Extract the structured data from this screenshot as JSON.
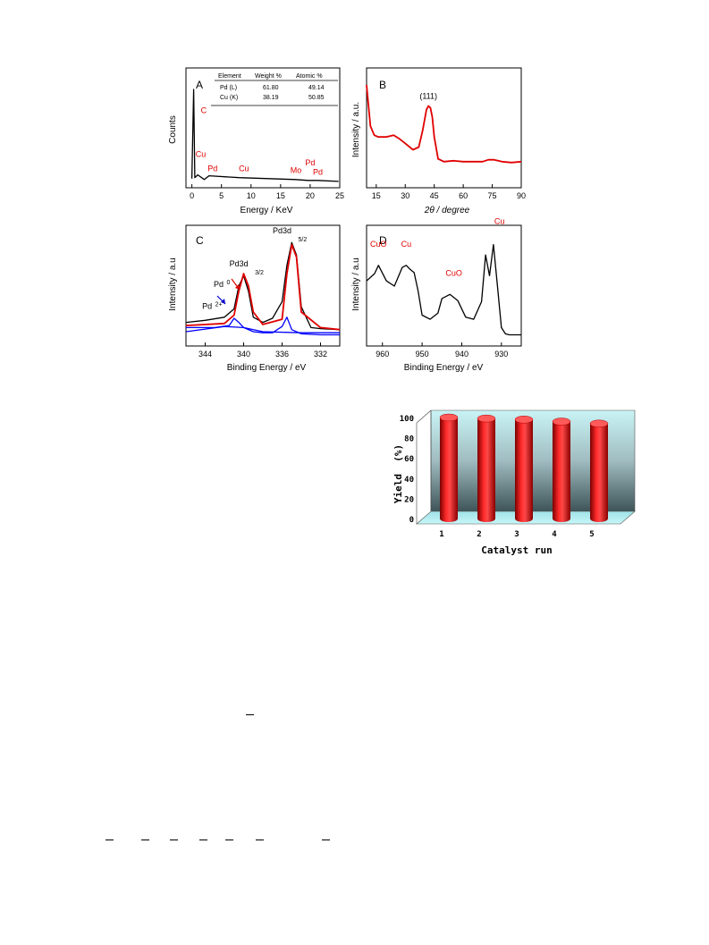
{
  "panels": {
    "A": {
      "letter": "A",
      "ylabel": "Counts",
      "xlabel": "Energy / KeV",
      "table": {
        "headers": [
          "Element",
          "Weight %",
          "Atomic %"
        ],
        "rows": [
          [
            "Pd (L)",
            "61.80",
            "49.14"
          ],
          [
            "Cu (K)",
            "38.19",
            "50.85"
          ]
        ]
      }
    },
    "B": {
      "letter": "B",
      "ylabel": "Intensity / a.u.",
      "xlabel": "2θ / degree"
    },
    "C": {
      "letter": "C",
      "ylabel": "Intensity / a.u",
      "xlabel": "Binding Energy / eV"
    },
    "D": {
      "letter": "D",
      "ylabel": "Intensity / a.u",
      "xlabel": "Binding Energy / eV"
    },
    "E": {
      "ylabel": "Yield  (%)",
      "xlabel": "Catalyst run"
    }
  },
  "chart_data": [
    {
      "type": "line",
      "panel": "A",
      "xlim": [
        -1,
        25
      ],
      "xticks": [
        0,
        5,
        10,
        15,
        20,
        25
      ],
      "series": [
        {
          "x": [
            0,
            0.3,
            0.5,
            1,
            2.1,
            2.9,
            8,
            17.5,
            19.6,
            21.2,
            24.8
          ],
          "y": [
            5,
            100,
            6,
            9,
            4,
            8,
            6,
            4,
            3,
            3,
            2
          ]
        }
      ],
      "annotations": [
        {
          "text": "C",
          "x": 2.0,
          "y": 75
        },
        {
          "text": "Cu",
          "x": 1.5,
          "y": 28
        },
        {
          "text": "Pd",
          "x": 3.5,
          "y": 13
        },
        {
          "text": "Cu",
          "x": 8.8,
          "y": 13
        },
        {
          "text": "Mo",
          "x": 17.6,
          "y": 11
        },
        {
          "text": "Pd",
          "x": 20.0,
          "y": 19
        },
        {
          "text": "Pd",
          "x": 21.3,
          "y": 9
        }
      ]
    },
    {
      "type": "line",
      "panel": "B",
      "xlim": [
        10,
        90
      ],
      "xticks": [
        15,
        30,
        45,
        60,
        75,
        90
      ],
      "series": [
        {
          "x": [
            10,
            11,
            12,
            14,
            16,
            20,
            24,
            27,
            30,
            34,
            37,
            39,
            41,
            42,
            43,
            44,
            45,
            47,
            50,
            55,
            60,
            65,
            70,
            73,
            76,
            80,
            85,
            90
          ],
          "y": [
            95,
            72,
            50,
            40,
            38,
            38,
            40,
            36,
            31,
            24,
            27,
            45,
            68,
            72,
            70,
            60,
            38,
            14,
            11,
            12,
            11,
            11,
            11,
            13,
            13,
            11,
            10,
            11
          ]
        }
      ],
      "annotations": [
        {
          "text": "(111)",
          "x": 42,
          "y": 80
        }
      ]
    },
    {
      "type": "line",
      "panel": "C",
      "xlim": [
        346,
        330
      ],
      "xticks": [
        344,
        340,
        336,
        332
      ],
      "series": [
        {
          "name": "envelope",
          "color": "#000000",
          "x": [
            346,
            344,
            342,
            341,
            340.5,
            340,
            339.5,
            339,
            338,
            337,
            336,
            335.5,
            335,
            334.5,
            334,
            333,
            332,
            330
          ],
          "y": [
            15,
            17,
            20,
            28,
            50,
            60,
            45,
            20,
            15,
            19,
            35,
            70,
            92,
            80,
            30,
            10,
            9,
            8
          ]
        },
        {
          "name": "Pd0",
          "color": "#ff0000",
          "x": [
            346,
            342,
            341,
            340.5,
            340,
            339.5,
            339,
            338,
            336,
            335.5,
            335,
            334.5,
            334,
            332,
            330
          ],
          "y": [
            12,
            14,
            22,
            45,
            62,
            50,
            25,
            13,
            18,
            62,
            90,
            78,
            25,
            10,
            8
          ]
        },
        {
          "name": "Pd2+",
          "color": "#0000ff",
          "x": [
            346,
            343,
            341.5,
            341,
            340.5,
            340,
            339,
            338,
            337,
            336,
            335.5,
            335,
            334,
            332,
            330
          ],
          "y": [
            10,
            10,
            12,
            19,
            15,
            10,
            6,
            5,
            5,
            11,
            20,
            8,
            4,
            3,
            3
          ]
        },
        {
          "name": "baseline",
          "color": "#0000ff",
          "x": [
            346,
            342,
            340,
            338,
            334,
            330
          ],
          "y": [
            6,
            11,
            10,
            6,
            5,
            5
          ]
        }
      ],
      "annotations": [
        {
          "text": "Pd3d",
          "sub": "3/2",
          "x": 340.5,
          "y": 69
        },
        {
          "text": "Pd3d",
          "sub": "5/2",
          "x": 336,
          "y": 101
        },
        {
          "text": "Pd",
          "sup": "0",
          "x": 342.6,
          "y": 49
        },
        {
          "text": "Pd",
          "sup": "2+",
          "x": 343.8,
          "y": 28
        }
      ]
    },
    {
      "type": "line",
      "panel": "D",
      "xlim": [
        964,
        925
      ],
      "xticks": [
        960,
        950,
        940,
        930
      ],
      "series": [
        {
          "x": [
            964,
            962,
            961,
            959,
            957,
            955,
            954,
            953,
            952,
            951,
            950,
            948,
            946,
            945,
            943,
            941,
            939,
            937,
            935,
            934,
            933,
            932,
            931,
            930,
            929,
            928,
            925
          ],
          "y": [
            55,
            62,
            70,
            55,
            50,
            68,
            70,
            66,
            63,
            45,
            22,
            18,
            24,
            38,
            42,
            36,
            20,
            18,
            35,
            80,
            60,
            90,
            50,
            10,
            4,
            3,
            3
          ]
        }
      ],
      "annotations": [
        {
          "text": "CuO",
          "x": 961,
          "y": 88
        },
        {
          "text": "Cu",
          "x": 954,
          "y": 88
        },
        {
          "text": "CuO",
          "x": 942,
          "y": 60
        },
        {
          "text": "Cu",
          "x": 930.5,
          "y": 110
        }
      ]
    },
    {
      "type": "bar",
      "panel": "E",
      "categories": [
        "1",
        "2",
        "3",
        "4",
        "5"
      ],
      "values": [
        100,
        99,
        98,
        96,
        94
      ],
      "ylim": [
        0,
        100
      ],
      "yticks": [
        0,
        20,
        40,
        60,
        80,
        100
      ]
    }
  ]
}
